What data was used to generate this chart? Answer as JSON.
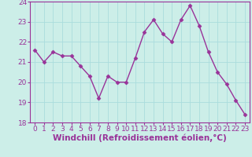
{
  "x": [
    0,
    1,
    2,
    3,
    4,
    5,
    6,
    7,
    8,
    9,
    10,
    11,
    12,
    13,
    14,
    15,
    16,
    17,
    18,
    19,
    20,
    21,
    22,
    23
  ],
  "y": [
    21.6,
    21.0,
    21.5,
    21.3,
    21.3,
    20.8,
    20.3,
    19.2,
    20.3,
    20.0,
    20.0,
    21.2,
    22.5,
    23.1,
    22.4,
    22.0,
    23.1,
    23.8,
    22.8,
    21.5,
    20.5,
    19.9,
    19.1,
    18.4
  ],
  "line_color": "#993399",
  "marker": "D",
  "marker_size": 2.5,
  "bg_color": "#cceee8",
  "grid_color": "#aadddd",
  "xlabel": "Windchill (Refroidissement éolien,°C)",
  "xlabel_color": "#993399",
  "tick_color": "#993399",
  "spine_color": "#993399",
  "ylim": [
    18,
    24
  ],
  "xlim": [
    -0.5,
    23.5
  ],
  "yticks": [
    18,
    19,
    20,
    21,
    22,
    23,
    24
  ],
  "xticks": [
    0,
    1,
    2,
    3,
    4,
    5,
    6,
    7,
    8,
    9,
    10,
    11,
    12,
    13,
    14,
    15,
    16,
    17,
    18,
    19,
    20,
    21,
    22,
    23
  ],
  "xtick_labels": [
    "0",
    "1",
    "2",
    "3",
    "4",
    "5",
    "6",
    "7",
    "8",
    "9",
    "10",
    "11",
    "12",
    "13",
    "14",
    "15",
    "16",
    "17",
    "18",
    "19",
    "20",
    "21",
    "22",
    "23"
  ],
  "ytick_labels": [
    "18",
    "19",
    "20",
    "21",
    "22",
    "23",
    "24"
  ],
  "xlabel_fontsize": 7.5,
  "tick_fontsize": 6.5,
  "linewidth": 1.0
}
